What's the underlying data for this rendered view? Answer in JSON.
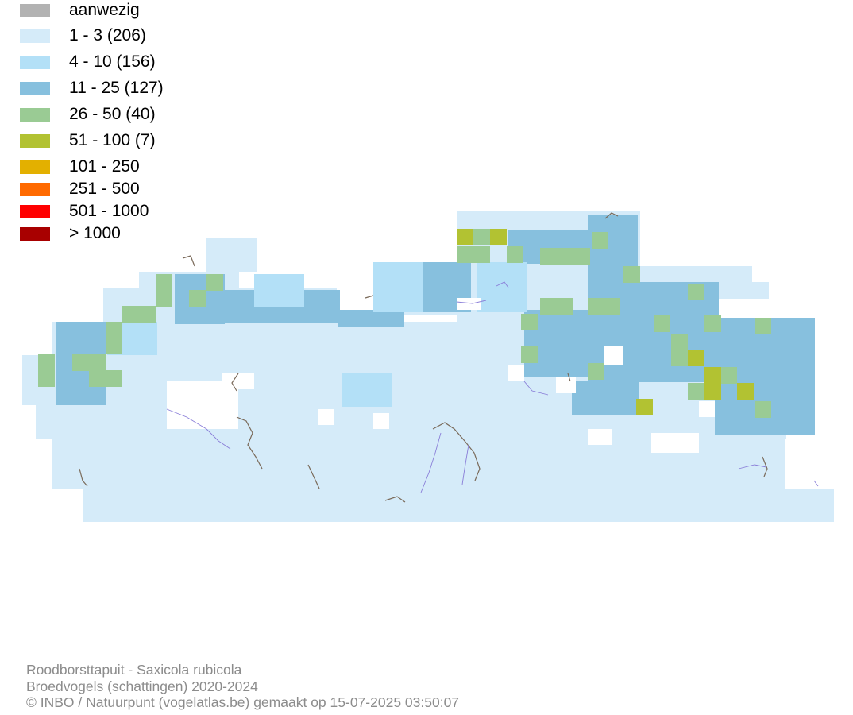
{
  "legend": [
    {
      "label": "aanwezig",
      "color": "#b2b2b2"
    },
    {
      "label": "1 - 3 (206)",
      "color": "#d5ebf9"
    },
    {
      "label": "4 - 10 (156)",
      "color": "#b3e0f7"
    },
    {
      "label": "11 - 25 (127)",
      "color": "#87c0de"
    },
    {
      "label": "26 - 50 (40)",
      "color": "#9acb94"
    },
    {
      "label": "51 - 100 (7)",
      "color": "#b2c232"
    },
    {
      "label": "101 - 250",
      "color": "#e3b000"
    },
    {
      "label": "251 - 500",
      "color": "#ff6a00"
    },
    {
      "label": "501 - 1000",
      "color": "#ff0000"
    },
    {
      "label": "> 1000",
      "color": "#a80000"
    }
  ],
  "credits": {
    "species": "Roodborsttapuit - Saxicola rubicola",
    "survey": "Broedvogels (schattingen) 2020-2024",
    "copyright": "© INBO / Natuurpunt (vogelatlas.be) gemaakt op 15-07-2025 03:50:07"
  }
}
